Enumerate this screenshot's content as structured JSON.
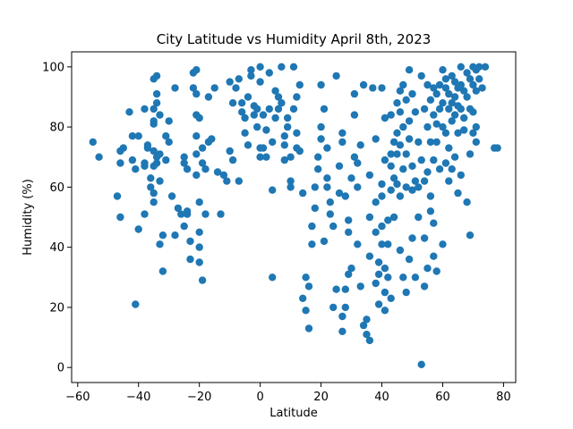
{
  "chart_data": {
    "type": "scatter",
    "title": "City Latitude vs Humidity April 8th, 2023",
    "xlabel": "Latitude",
    "ylabel": "Humidity (%)",
    "xlim": [
      -62,
      84
    ],
    "ylim": [
      -5,
      105
    ],
    "xticks": [
      -60,
      -40,
      -20,
      0,
      20,
      40,
      60,
      80
    ],
    "yticks": [
      0,
      20,
      40,
      60,
      80,
      100
    ],
    "grid": false,
    "marker_color": "#1f77b4",
    "points": [
      [
        -55,
        75
      ],
      [
        -53,
        70
      ],
      [
        -47,
        57
      ],
      [
        -46,
        50
      ],
      [
        -46,
        68
      ],
      [
        -46,
        72
      ],
      [
        -45,
        73
      ],
      [
        -43,
        85
      ],
      [
        -42,
        77
      ],
      [
        -42,
        69
      ],
      [
        -41,
        66
      ],
      [
        -41,
        21
      ],
      [
        -40,
        46
      ],
      [
        -40,
        77
      ],
      [
        -38,
        86
      ],
      [
        -38,
        68
      ],
      [
        -38,
        67
      ],
      [
        -37,
        73
      ],
      [
        -37,
        74
      ],
      [
        -38,
        51
      ],
      [
        -35,
        86
      ],
      [
        -35,
        82
      ],
      [
        -35,
        81
      ],
      [
        -35,
        96
      ],
      [
        -34,
        97
      ],
      [
        -34,
        91
      ],
      [
        -34,
        88
      ],
      [
        -33,
        84
      ],
      [
        -35,
        72
      ],
      [
        -34,
        70
      ],
      [
        -33,
        71
      ],
      [
        -34,
        68
      ],
      [
        -35,
        67
      ],
      [
        -36,
        63
      ],
      [
        -36,
        60
      ],
      [
        -35,
        58
      ],
      [
        -35,
        55
      ],
      [
        -33,
        62
      ],
      [
        -33,
        41
      ],
      [
        -32,
        32
      ],
      [
        -32,
        44
      ],
      [
        -31,
        77
      ],
      [
        -31,
        69
      ],
      [
        -30,
        82
      ],
      [
        -30,
        75
      ],
      [
        -29,
        57
      ],
      [
        -28,
        93
      ],
      [
        -28,
        44
      ],
      [
        -27,
        53
      ],
      [
        -26,
        51
      ],
      [
        -25,
        70
      ],
      [
        -25,
        68
      ],
      [
        -24,
        66
      ],
      [
        -25,
        47
      ],
      [
        -24,
        51
      ],
      [
        -24,
        52
      ],
      [
        -23,
        36
      ],
      [
        -23,
        42
      ],
      [
        -22,
        98
      ],
      [
        -22,
        93
      ],
      [
        -21,
        99
      ],
      [
        -21,
        91
      ],
      [
        -21,
        84
      ],
      [
        -20,
        83
      ],
      [
        -21,
        77
      ],
      [
        -21,
        71
      ],
      [
        -21,
        64
      ],
      [
        -20,
        55
      ],
      [
        -20,
        45
      ],
      [
        -20,
        40
      ],
      [
        -20,
        35
      ],
      [
        -19,
        29
      ],
      [
        -19,
        73
      ],
      [
        -19,
        68
      ],
      [
        -18,
        66
      ],
      [
        -18,
        51
      ],
      [
        -17,
        75
      ],
      [
        -17,
        90
      ],
      [
        -16,
        76
      ],
      [
        -15,
        93
      ],
      [
        -14,
        65
      ],
      [
        -13,
        51
      ],
      [
        -12,
        64
      ],
      [
        -11,
        62
      ],
      [
        -10,
        72
      ],
      [
        -10,
        95
      ],
      [
        -9,
        88
      ],
      [
        -9,
        69
      ],
      [
        -8,
        93
      ],
      [
        -7,
        96
      ],
      [
        -7,
        62
      ],
      [
        -6,
        88
      ],
      [
        -6,
        85
      ],
      [
        -5,
        83
      ],
      [
        -5,
        78
      ],
      [
        -4,
        74
      ],
      [
        -4,
        90
      ],
      [
        -3,
        97
      ],
      [
        -3,
        99
      ],
      [
        -2,
        87
      ],
      [
        -2,
        84
      ],
      [
        -1,
        80
      ],
      [
        -1,
        86
      ],
      [
        0,
        95
      ],
      [
        0,
        100
      ],
      [
        0,
        70
      ],
      [
        0,
        73
      ],
      [
        1,
        84
      ],
      [
        1,
        73
      ],
      [
        2,
        79
      ],
      [
        2,
        70
      ],
      [
        3,
        98
      ],
      [
        3,
        86
      ],
      [
        4,
        75
      ],
      [
        4,
        59
      ],
      [
        4,
        30
      ],
      [
        5,
        92
      ],
      [
        5,
        83
      ],
      [
        6,
        90
      ],
      [
        6,
        86
      ],
      [
        7,
        100
      ],
      [
        7,
        88
      ],
      [
        8,
        77
      ],
      [
        8,
        74
      ],
      [
        8,
        69
      ],
      [
        9,
        83
      ],
      [
        9,
        80
      ],
      [
        10,
        70
      ],
      [
        10,
        60
      ],
      [
        10,
        62
      ],
      [
        11,
        100
      ],
      [
        11,
        86
      ],
      [
        12,
        90
      ],
      [
        12,
        78
      ],
      [
        12,
        73
      ],
      [
        13,
        94
      ],
      [
        13,
        72
      ],
      [
        14,
        58
      ],
      [
        14,
        23
      ],
      [
        15,
        30
      ],
      [
        15,
        19
      ],
      [
        16,
        13
      ],
      [
        16,
        27
      ],
      [
        17,
        41
      ],
      [
        17,
        47
      ],
      [
        18,
        53
      ],
      [
        18,
        60
      ],
      [
        19,
        66
      ],
      [
        19,
        70
      ],
      [
        20,
        94
      ],
      [
        20,
        80
      ],
      [
        20,
        76
      ],
      [
        21,
        86
      ],
      [
        21,
        42
      ],
      [
        22,
        73
      ],
      [
        22,
        63
      ],
      [
        22,
        60
      ],
      [
        23,
        55
      ],
      [
        23,
        51
      ],
      [
        24,
        47
      ],
      [
        24,
        20
      ],
      [
        25,
        26
      ],
      [
        25,
        97
      ],
      [
        26,
        67
      ],
      [
        26,
        58
      ],
      [
        27,
        78
      ],
      [
        27,
        75
      ],
      [
        27,
        17
      ],
      [
        27,
        12
      ],
      [
        28,
        20
      ],
      [
        28,
        26
      ],
      [
        28,
        57
      ],
      [
        29,
        49
      ],
      [
        29,
        45
      ],
      [
        29,
        31
      ],
      [
        30,
        63
      ],
      [
        30,
        33
      ],
      [
        31,
        84
      ],
      [
        31,
        70
      ],
      [
        31,
        91
      ],
      [
        32,
        68
      ],
      [
        32,
        60
      ],
      [
        32,
        41
      ],
      [
        33,
        27
      ],
      [
        33,
        74
      ],
      [
        34,
        94
      ],
      [
        34,
        14
      ],
      [
        35,
        16
      ],
      [
        35,
        11
      ],
      [
        36,
        9
      ],
      [
        36,
        64
      ],
      [
        36,
        50
      ],
      [
        36,
        37
      ],
      [
        37,
        93
      ],
      [
        38,
        76
      ],
      [
        38,
        55
      ],
      [
        38,
        45
      ],
      [
        38,
        28
      ],
      [
        39,
        35
      ],
      [
        39,
        31
      ],
      [
        39,
        21
      ],
      [
        40,
        93
      ],
      [
        40,
        61
      ],
      [
        40,
        57
      ],
      [
        40,
        47
      ],
      [
        40,
        41
      ],
      [
        41,
        83
      ],
      [
        41,
        69
      ],
      [
        41,
        33
      ],
      [
        41,
        25
      ],
      [
        41,
        19
      ],
      [
        42,
        49
      ],
      [
        42,
        41
      ],
      [
        42,
        30
      ],
      [
        43,
        84
      ],
      [
        43,
        71
      ],
      [
        43,
        67
      ],
      [
        43,
        59
      ],
      [
        43,
        23
      ],
      [
        44,
        75
      ],
      [
        44,
        63
      ],
      [
        44,
        50
      ],
      [
        45,
        88
      ],
      [
        45,
        78
      ],
      [
        45,
        71
      ],
      [
        45,
        61
      ],
      [
        46,
        92
      ],
      [
        46,
        85
      ],
      [
        46,
        74
      ],
      [
        46,
        57
      ],
      [
        46,
        39
      ],
      [
        47,
        94
      ],
      [
        47,
        80
      ],
      [
        47,
        66
      ],
      [
        47,
        30
      ],
      [
        48,
        89
      ],
      [
        48,
        71
      ],
      [
        48,
        60
      ],
      [
        48,
        25
      ],
      [
        49,
        99
      ],
      [
        49,
        82
      ],
      [
        49,
        76
      ],
      [
        49,
        36
      ],
      [
        50,
        91
      ],
      [
        50,
        67
      ],
      [
        50,
        59
      ],
      [
        50,
        43
      ],
      [
        51,
        85
      ],
      [
        51,
        62
      ],
      [
        51,
        30
      ],
      [
        52,
        75
      ],
      [
        52,
        60
      ],
      [
        52,
        50
      ],
      [
        53,
        97
      ],
      [
        53,
        69
      ],
      [
        53,
        1
      ],
      [
        54,
        86
      ],
      [
        54,
        62
      ],
      [
        54,
        43
      ],
      [
        54,
        27
      ],
      [
        55,
        94
      ],
      [
        55,
        80
      ],
      [
        55,
        65
      ],
      [
        55,
        33
      ],
      [
        56,
        89
      ],
      [
        56,
        75
      ],
      [
        56,
        57
      ],
      [
        56,
        52
      ],
      [
        57,
        93
      ],
      [
        57,
        84
      ],
      [
        57,
        69
      ],
      [
        57,
        48
      ],
      [
        57,
        37
      ],
      [
        58,
        91
      ],
      [
        58,
        81
      ],
      [
        58,
        75
      ],
      [
        58,
        32
      ],
      [
        59,
        94
      ],
      [
        59,
        86
      ],
      [
        59,
        66
      ],
      [
        60,
        99
      ],
      [
        60,
        88
      ],
      [
        60,
        80
      ],
      [
        60,
        41
      ],
      [
        61,
        96
      ],
      [
        61,
        93
      ],
      [
        61,
        78
      ],
      [
        61,
        68
      ],
      [
        62,
        91
      ],
      [
        62,
        86
      ],
      [
        62,
        73
      ],
      [
        62,
        62
      ],
      [
        63,
        97
      ],
      [
        63,
        88
      ],
      [
        63,
        82
      ],
      [
        63,
        66
      ],
      [
        64,
        95
      ],
      [
        64,
        90
      ],
      [
        64,
        84
      ],
      [
        64,
        70
      ],
      [
        65,
        93
      ],
      [
        65,
        87
      ],
      [
        65,
        78
      ],
      [
        65,
        58
      ],
      [
        66,
        100
      ],
      [
        66,
        94
      ],
      [
        66,
        86
      ],
      [
        66,
        64
      ],
      [
        67,
        92
      ],
      [
        67,
        83
      ],
      [
        67,
        79
      ],
      [
        68,
        98
      ],
      [
        68,
        90
      ],
      [
        68,
        55
      ],
      [
        69,
        96
      ],
      [
        69,
        86
      ],
      [
        69,
        71
      ],
      [
        69,
        44
      ],
      [
        70,
        100
      ],
      [
        70,
        94
      ],
      [
        70,
        85
      ],
      [
        70,
        78
      ],
      [
        71,
        99
      ],
      [
        71,
        92
      ],
      [
        71,
        80
      ],
      [
        71,
        75
      ],
      [
        72,
        100
      ],
      [
        72,
        96
      ],
      [
        73,
        93
      ],
      [
        74,
        100
      ],
      [
        77,
        73
      ],
      [
        78,
        73
      ]
    ]
  }
}
